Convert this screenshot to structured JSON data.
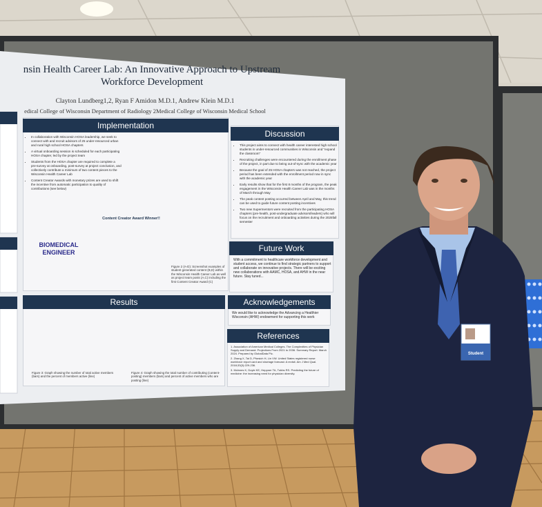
{
  "poster": {
    "title_lines": [
      "nsin Health Career Lab: An Innovative Approach to Upstream",
      "Workforce Development"
    ],
    "authors": "Clayton Lundberg1,2, Ryan F Amidon M.D.1, Andrew Klein M.D.1",
    "affiliations": "edical College of Wisconsin Department of Radiology 2Medical College of Wisconsin Medical School",
    "implementation": {
      "heading": "Implementation",
      "bullets": [
        "In collaboration with Wisconsin HOSA leadership, we seek to connect with and recruit advisors of 25 under-resourced urban and rural high school HOSA chapters",
        "A virtual onboarding session is scheduled for each participating HOSA chapter, led by the project team",
        "Students from the HOSA chapter are required to complete a pre-survey at onboarding, post-survey at project conclusion, and collectively contribute a minimum of two content pieces to the Wisconsin Health Career Lab",
        "Content Creator Awards with monetary prizes are used to shift the incentive from automatic participation to quality of contributions (see below)"
      ]
    },
    "figure_content": {
      "biomedical": "BIOMEDICAL ENGINEER",
      "award": "Content Creator Award Winner!!",
      "caption": "Figure 2 (A-D): Screenshot examples of student generated content (B,D) within the Wisconsin Health Career Lab as well as project team posts (A,C) including the first Content Creator Award (C)"
    },
    "results": {
      "heading": "Results",
      "captions": [
        "Figure 3: Graph showing the number of total active members (bars) and the percent of members active (line)",
        "Figure 4: Graph showing the total number of contributing (content-posting) members (bars) and percent of active members who are posting (line)"
      ]
    },
    "discussion": {
      "heading": "Discussion",
      "bullets": [
        "This project aims to connect with health career interested high school students in under-resourced communities in Wisconsin and \"expand the classroom\"",
        "Recruiting challenges were encountered during the enrollment phase of the project, in part due to being out-of-sync with the academic year",
        "Because the goal of 25 HOSA chapters was not reached, the project period has been extended with the enrollment period now in sync with the academic year",
        "Early results show that for the first 8 months of the program, the peak engagement in the Wisconsin Health Career Lab was in the months of March through May",
        "The peak content posting occurred between April and May, this trend can be used to guide future content posting incentives",
        "Two new Supermentors were recruited from the participating HOSA chapters (pre-health, post-undergraduate advisors/leaders) who will focus on the recruitment and onboarding activities during the 2025fall semester"
      ]
    },
    "future_work": {
      "heading": "Future Work",
      "text": "With a commitment to healthcare workforce development and student access, we continue to find strategic partners to support and collaborate on innovative projects. There will be exciting new collaborations with AAMC, HOSA, and AHW in the near future. Stay tuned..."
    },
    "acknowledgements": {
      "heading": "Acknowledgements",
      "text": "We would like to acknowledge the Advancing a Healthier Wisconsin (AHW) endowment for supporting this work"
    },
    "references": {
      "heading": "References",
      "items": [
        "1. Association of American Medical Colleges. The Complexities of Physician Supply and Demand: Projections From 2021 to 2036. Summary Report. March 2024. Prepared by GlobalData Plc.",
        "2. Zhang X, Tai D, Pforsich H, Lin VW. United States registered nurse workforce report card and shortage forecast: A revisit. Am J Med Qual. 2018;33(3):229-236.",
        "3. Mclnnes K, Doyle KE, Heppner TA, Tubbs RS. Predicting the future of medicine: the increasing need for physician diversity."
      ]
    }
  },
  "badge": "Student"
}
